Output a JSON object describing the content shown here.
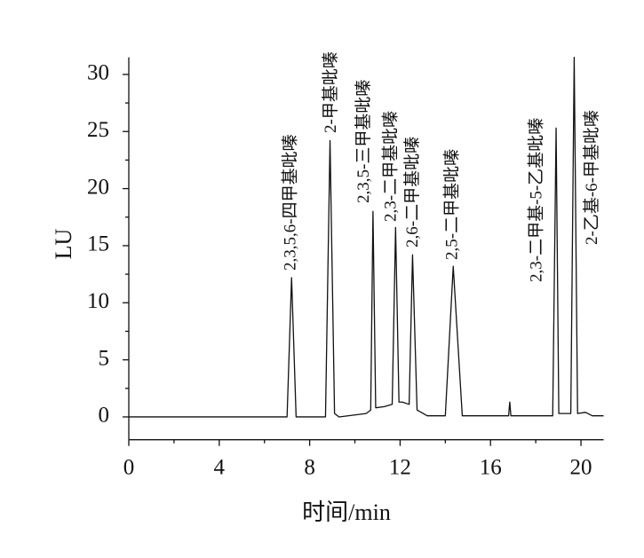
{
  "chart_data": {
    "type": "line",
    "xlabel": "时间/min",
    "ylabel": "LU",
    "xlim": [
      0,
      21
    ],
    "ylim": [
      -2,
      31.5
    ],
    "xticks": [
      0,
      4,
      8,
      12,
      16,
      20
    ],
    "yticks": [
      0,
      5,
      10,
      15,
      20,
      25,
      30
    ],
    "xminorticks": [
      2,
      6,
      10,
      14,
      18
    ],
    "yminorticks": [
      2.5,
      7.5,
      12.5,
      17.5,
      22.5,
      27.5
    ],
    "series": [
      {
        "color": "#111111",
        "x": [
          0,
          7.0,
          7.2,
          7.4,
          8.7,
          8.9,
          9.1,
          9.3,
          10.5,
          10.7,
          10.8,
          10.92,
          11.3,
          11.65,
          11.8,
          11.95,
          12.1,
          12.4,
          12.55,
          12.75,
          13.2,
          14.0,
          14.35,
          14.75,
          16.8,
          16.85,
          16.9,
          18.75,
          18.9,
          19.02,
          19.55,
          19.7,
          19.85,
          20.2,
          20.5,
          21
        ],
        "values": [
          0,
          0,
          12.2,
          0,
          0,
          24.2,
          0.3,
          0,
          0.3,
          0.6,
          18,
          0.8,
          0.9,
          1.1,
          16.6,
          1.3,
          1.3,
          1.1,
          14.2,
          0.6,
          0.1,
          0.1,
          13.2,
          0.1,
          0.1,
          1.3,
          0.1,
          0.1,
          25.3,
          0.3,
          0.3,
          31.5,
          0.3,
          0.4,
          0.1,
          0.1
        ]
      }
    ],
    "annotations": [
      {
        "text": "2,3,5,6-四甲基吡嗪",
        "x": 7.2
      },
      {
        "text": "2-甲基吡嗪",
        "x": 8.9
      },
      {
        "text": "2,3,5-三甲基吡嗪",
        "x": 10.8
      },
      {
        "text": "2,3-二甲基吡嗪",
        "x": 11.8
      },
      {
        "text": "2,6-二甲基吡嗪",
        "x": 12.55
      },
      {
        "text": "2,5-二甲基吡嗪",
        "x": 14.35
      },
      {
        "text": "2,3-二甲基-5-乙基吡嗪",
        "x": 18.9
      },
      {
        "text": "2-乙基-6-甲基吡嗪",
        "x": 19.7
      }
    ]
  }
}
